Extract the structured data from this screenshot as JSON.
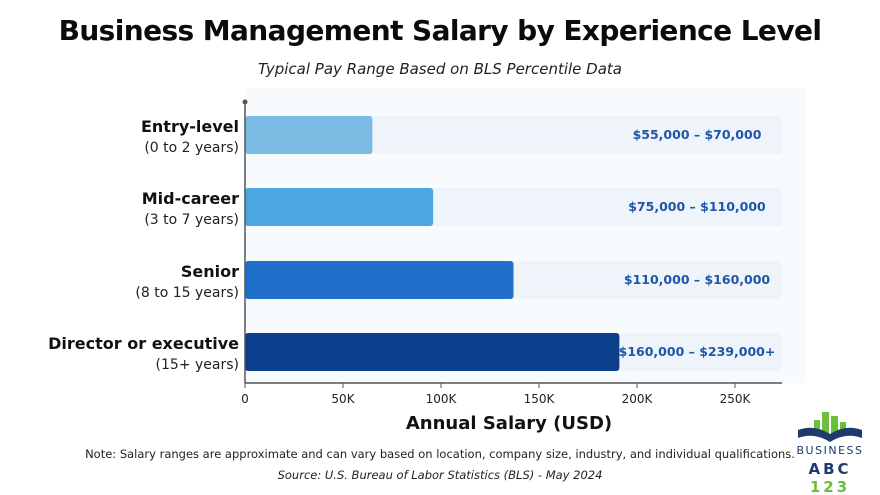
{
  "header": {
    "title": "Business Management Salary by Experience Level",
    "subtitle": "Typical Pay Range Based on BLS Percentile Data"
  },
  "footer": {
    "note": "Note: Salary ranges are approximate and can vary based on location, company size, industry, and individual qualifications.",
    "source": "Source: U.S. Bureau of Labor Statistics (BLS) - May 2024"
  },
  "logo": {
    "line1": "BUSINESS",
    "line2_letters": "ABC",
    "line2_numbers": "123"
  },
  "colors": {
    "bars": [
      "#7bbae3",
      "#4ba6e2",
      "#1f6fcb",
      "#0b3f8c"
    ],
    "track": "#eef4fa",
    "range_text": "#1f56a8",
    "axis": "#555555"
  },
  "chart_data": {
    "type": "bar",
    "orientation": "horizontal",
    "title": "Business Management Salary by Experience Level",
    "subtitle": "Typical Pay Range Based on BLS Percentile Data",
    "xlabel": "Annual Salary (USD)",
    "ylabel": "",
    "xlim": [
      0,
      275000
    ],
    "xticks": [
      0,
      50000,
      100000,
      150000,
      200000,
      250000
    ],
    "xtick_labels": [
      "0",
      "50K",
      "100K",
      "150K",
      "200K",
      "250K"
    ],
    "grid": false,
    "categories": [
      {
        "name": "Entry-level",
        "detail": "(0 to 2 years)",
        "value": 65000,
        "range_label": "$55,000 – $70,000"
      },
      {
        "name": "Mid-career",
        "detail": "(3 to 7 years)",
        "value": 96000,
        "range_label": "$75,000 – $110,000"
      },
      {
        "name": "Senior",
        "detail": "(8 to 15 years)",
        "value": 137000,
        "range_label": "$110,000 – $160,000"
      },
      {
        "name": "Director or executive",
        "detail": "(15+ years)",
        "value": 191000,
        "range_label": "$160,000 – $239,000+"
      }
    ]
  }
}
